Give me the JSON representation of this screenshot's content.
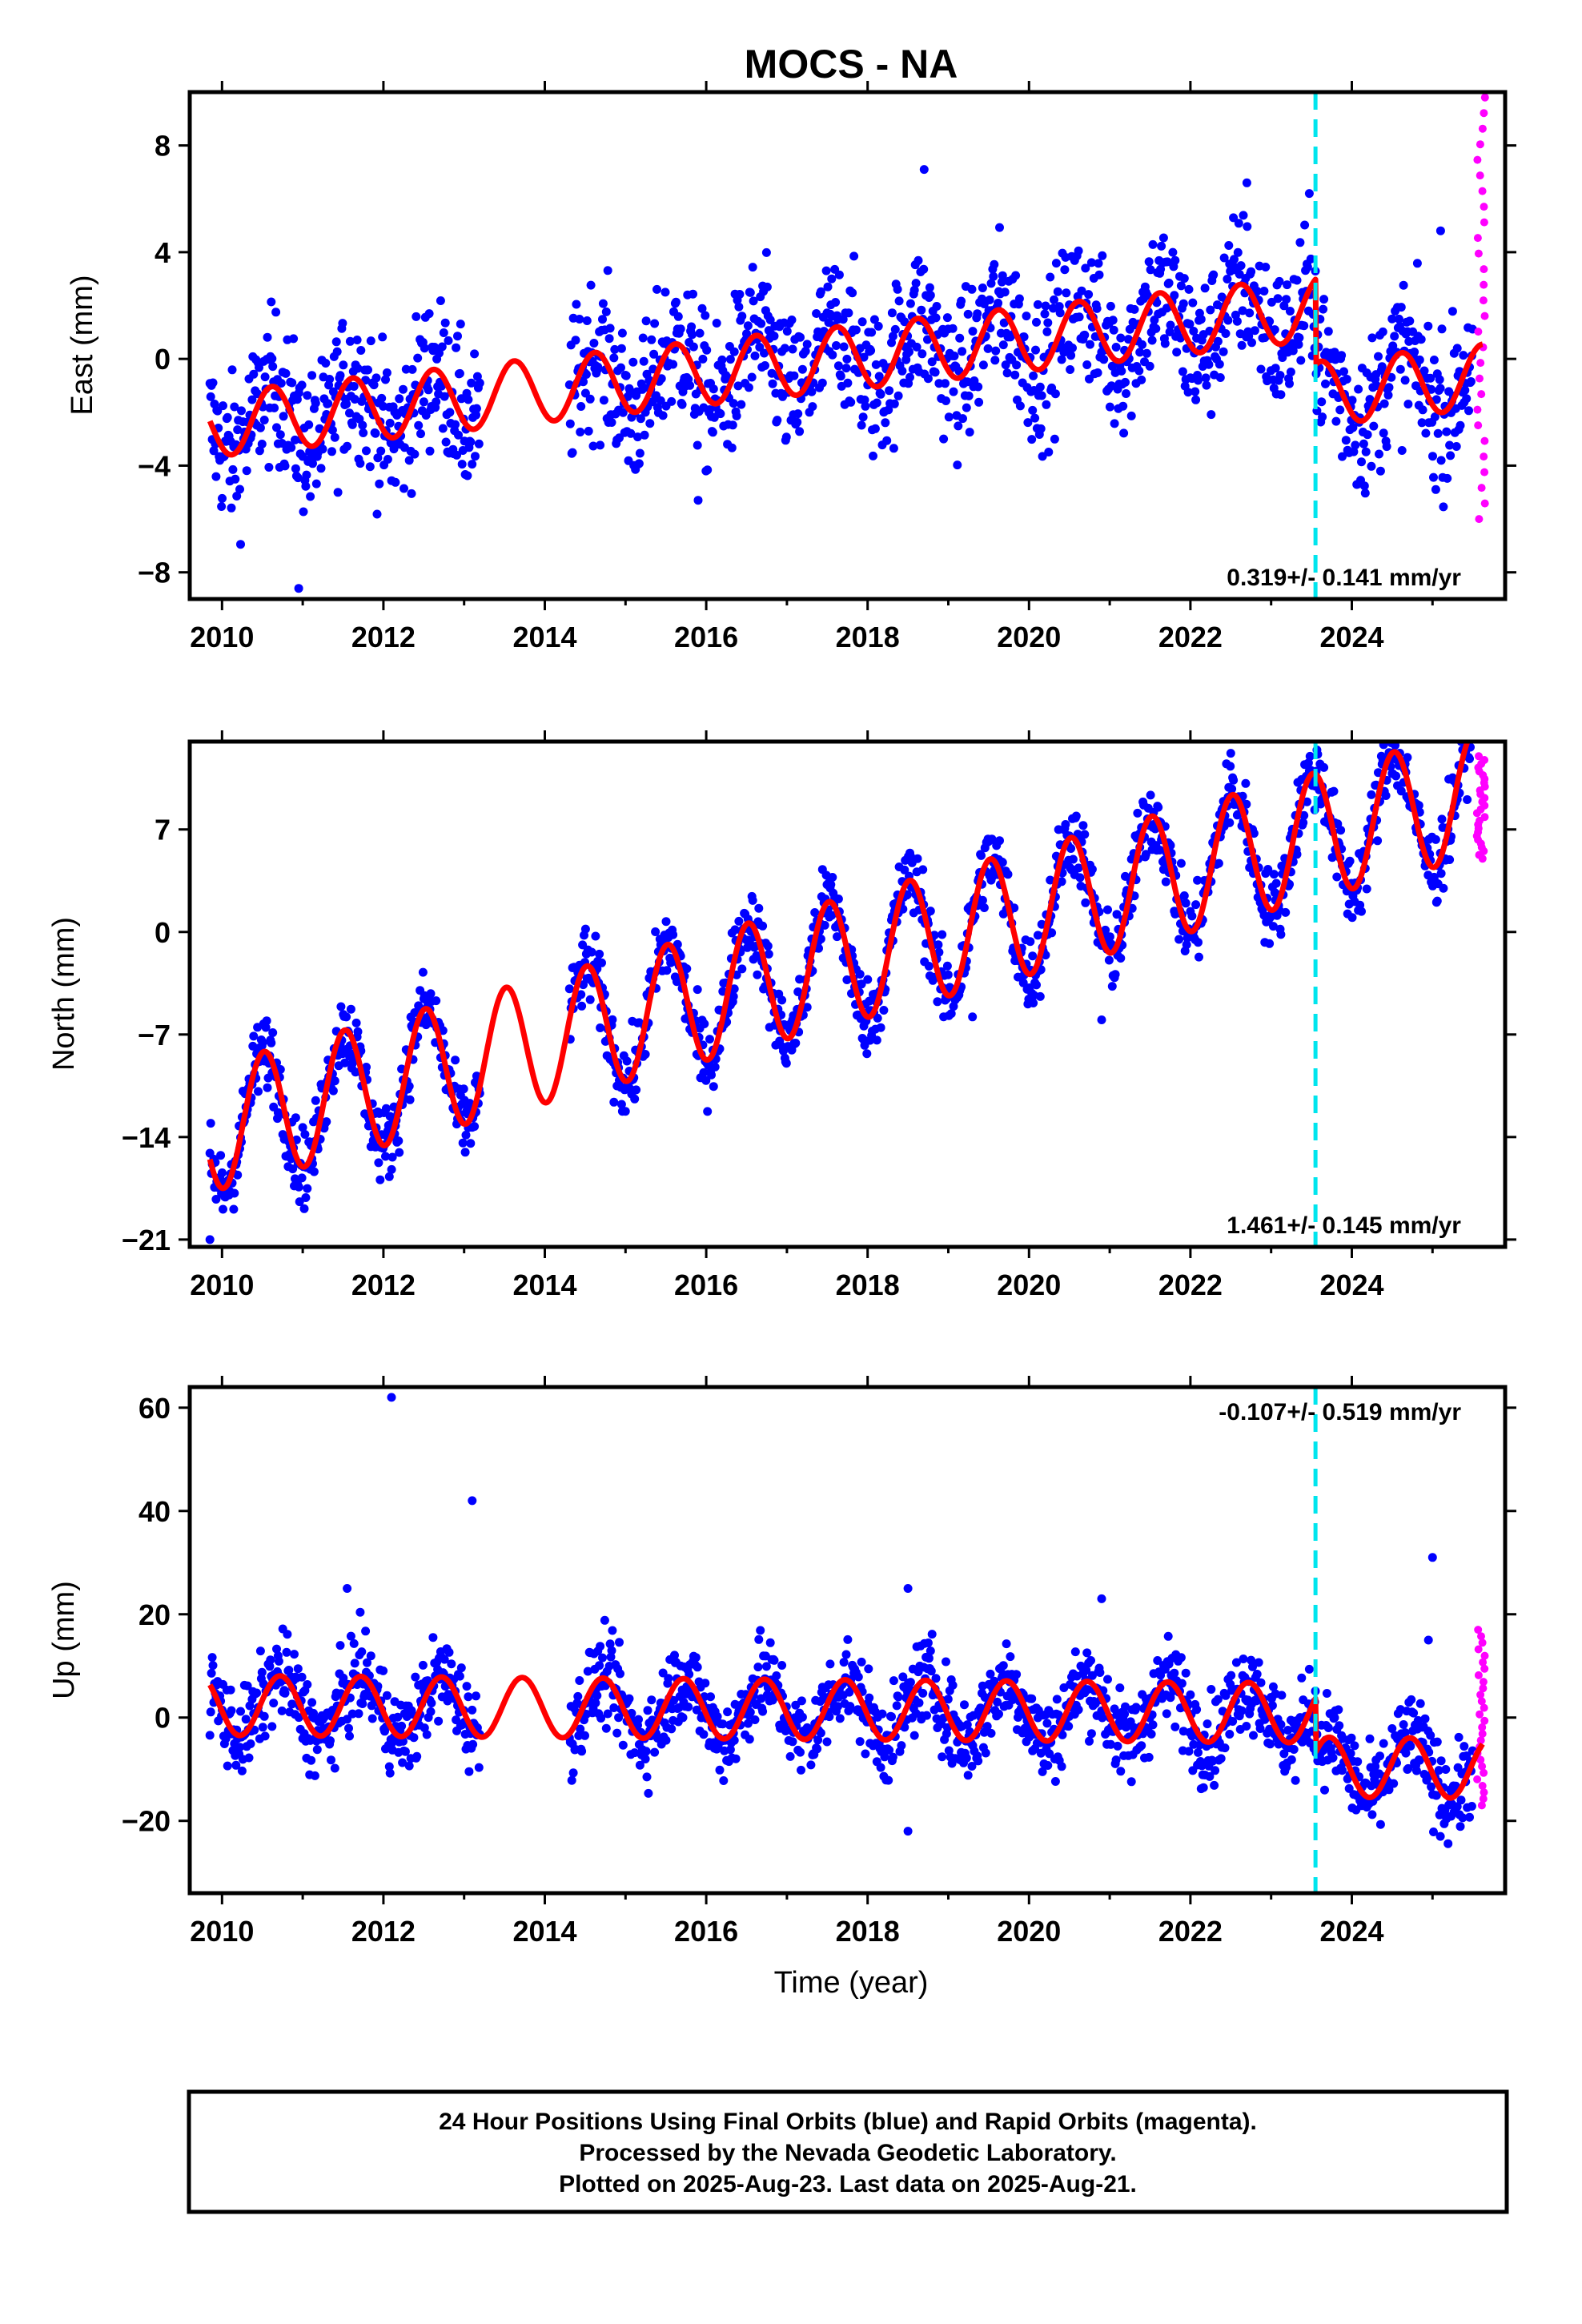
{
  "chart_data": [
    {
      "type": "scatter",
      "title": "MOCS - NA",
      "ylabel": "East (mm)",
      "xlabel": "",
      "xlim": [
        2009.6,
        2025.9
      ],
      "ylim": [
        -9,
        10
      ],
      "xticks": [
        2010,
        2012,
        2014,
        2016,
        2018,
        2020,
        2022,
        2024
      ],
      "yticks": [
        8,
        4,
        0,
        -4,
        -8
      ],
      "grid": false,
      "step_epoch": 2023.55,
      "rate_text": "0.319+/- 0.141 mm/yr",
      "rate_position": "bottom-right",
      "model": {
        "rate": 0.319,
        "offset_2017": -0.2,
        "amplitude": 1.2,
        "peak_phase": 0.62,
        "step": -3.2
      },
      "scatter_spread": 1.5,
      "series": [
        {
          "name": "Final Orbits",
          "color": "#0000ff",
          "span": [
            2009.85,
            2025.5
          ],
          "gap": [
            2013.2,
            2014.3
          ]
        },
        {
          "name": "Rapid Orbits",
          "color": "#ff00ff",
          "span": [
            2025.55,
            2025.65
          ],
          "values_range": [
            -6,
            9.8
          ]
        },
        {
          "name": "Model",
          "color": "#ff0000"
        }
      ],
      "outliers": [
        [
          2018.7,
          7.1
        ],
        [
          2010.95,
          -8.6
        ],
        [
          2025.1,
          4.8
        ],
        [
          2015.9,
          -5.3
        ],
        [
          2022.7,
          6.6
        ]
      ]
    },
    {
      "type": "scatter",
      "title": "",
      "ylabel": "North (mm)",
      "xlabel": "",
      "xlim": [
        2009.6,
        2025.9
      ],
      "ylim": [
        -21.5,
        13
      ],
      "xticks": [
        2010,
        2012,
        2014,
        2016,
        2018,
        2020,
        2022,
        2024
      ],
      "yticks": [
        7,
        0,
        -7,
        -14,
        -21
      ],
      "grid": false,
      "step_epoch": 2023.55,
      "rate_text": "1.461+/- 0.145 mm/yr",
      "rate_position": "bottom-right",
      "model": {
        "rate": 1.461,
        "offset_2017": -3.0,
        "amplitude": 4.3,
        "peak_phase": 0.52,
        "step": 0
      },
      "scatter_spread": 1.4,
      "series": [
        {
          "name": "Final Orbits",
          "color": "#0000ff",
          "span": [
            2009.85,
            2025.5
          ],
          "gap": [
            2013.2,
            2014.3
          ]
        },
        {
          "name": "Rapid Orbits",
          "color": "#ff00ff",
          "span": [
            2025.55,
            2025.65
          ],
          "values_range": [
            5,
            12
          ]
        },
        {
          "name": "Model",
          "color": "#ff0000"
        }
      ],
      "outliers": [
        [
          2009.85,
          -21
        ],
        [
          2019.3,
          -5.8
        ],
        [
          2020.9,
          -6
        ],
        [
          2017.8,
          -4.2
        ],
        [
          2022.5,
          12.2
        ]
      ]
    },
    {
      "type": "scatter",
      "title": "",
      "ylabel": "Up (mm)",
      "xlabel": "Time (year)",
      "xlim": [
        2009.6,
        2025.9
      ],
      "ylim": [
        -34,
        64
      ],
      "xticks": [
        2010,
        2012,
        2014,
        2016,
        2018,
        2020,
        2022,
        2024
      ],
      "yticks": [
        60,
        40,
        20,
        0,
        -20
      ],
      "grid": false,
      "step_epoch": 2023.55,
      "rate_text": "-0.107+/- 0.519 mm/yr",
      "rate_position": "top-right",
      "model": {
        "rate": -0.107,
        "offset_2017": 1.6,
        "amplitude": 5.8,
        "peak_phase": 0.72,
        "step": -10.5
      },
      "scatter_spread": 4.5,
      "series": [
        {
          "name": "Final Orbits",
          "color": "#0000ff",
          "span": [
            2009.85,
            2025.5
          ],
          "gap": [
            2013.2,
            2014.3
          ]
        },
        {
          "name": "Rapid Orbits",
          "color": "#ff00ff",
          "span": [
            2025.55,
            2025.65
          ],
          "values_range": [
            -17,
            17
          ]
        },
        {
          "name": "Model",
          "color": "#ff0000"
        }
      ],
      "outliers": [
        [
          2012.1,
          62
        ],
        [
          2013.1,
          42
        ],
        [
          2011.55,
          25
        ],
        [
          2018.5,
          25
        ],
        [
          2025.0,
          31
        ],
        [
          2018.5,
          -22
        ],
        [
          2024.95,
          15
        ],
        [
          2020.9,
          23
        ]
      ]
    }
  ],
  "caption": {
    "line1": "24 Hour Positions Using Final Orbits (blue) and Rapid Orbits (magenta).",
    "line2": "Processed by the Nevada Geodetic Laboratory.",
    "line3": "Plotted on 2025-Aug-23. Last data on 2025-Aug-21."
  }
}
